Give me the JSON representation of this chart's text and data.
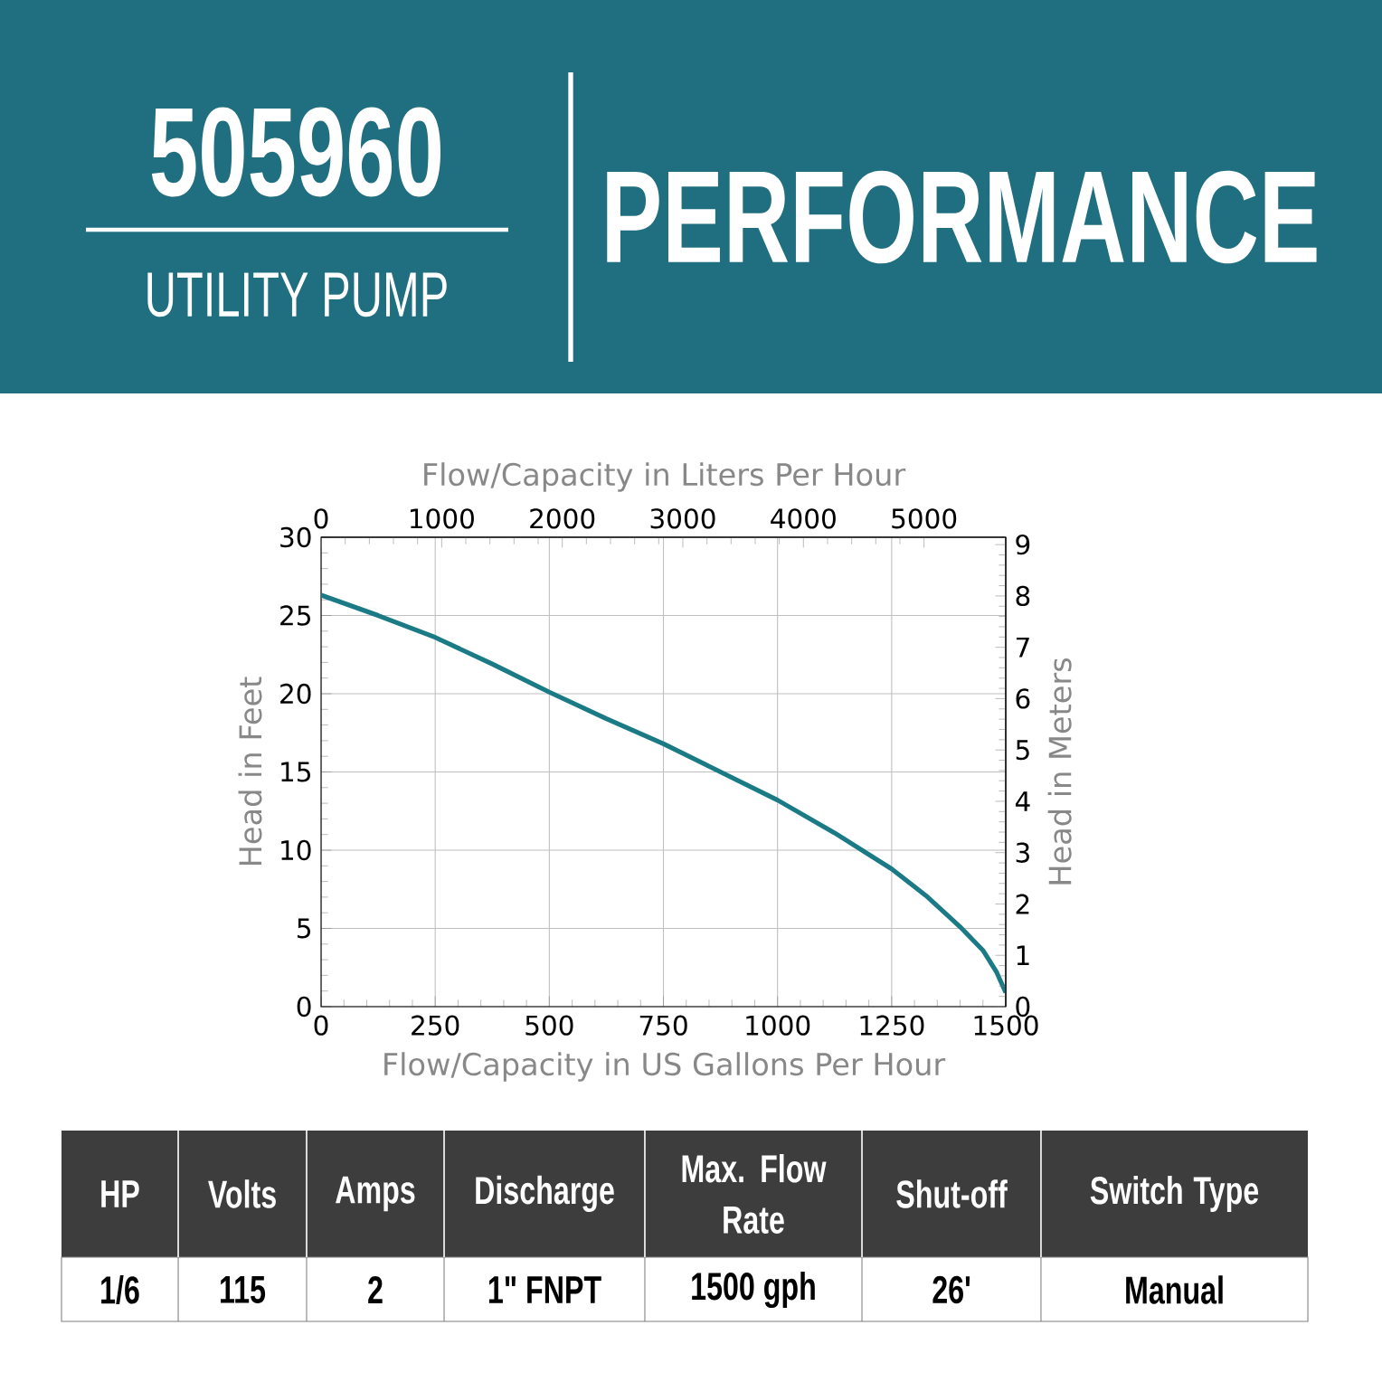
{
  "chart_data": {
    "type": "line",
    "title": "PERFORMANCE",
    "subtitle": "505960",
    "xlabel": "Flow/Capacity in US Gallons Per Hour",
    "ylabel": "Head in Feet",
    "x2label": "Flow/Capacity in Liters Per Hour",
    "y2label": "Head in Meters",
    "x": [
      0,
      125,
      250,
      375,
      500,
      625,
      750,
      875,
      1000,
      1125,
      1250,
      1325,
      1400,
      1450,
      1480,
      1500
    ],
    "series": [
      {
        "color": "#1a7a86",
        "values": [
          26.3,
          25.0,
          23.6,
          21.9,
          20.1,
          18.4,
          16.8,
          15.0,
          13.2,
          11.1,
          8.8,
          7.1,
          5.1,
          3.6,
          2.2,
          0.9
        ]
      }
    ],
    "xlim": [
      0,
      1500
    ],
    "xticks": [
      0,
      250,
      500,
      750,
      1000,
      1250,
      1500
    ],
    "ylim": [
      0,
      30
    ],
    "yticks": [
      0,
      5,
      10,
      15,
      20,
      25,
      30
    ],
    "x2lim": [
      0,
      5678
    ],
    "x2ticks": [
      0,
      1000,
      2000,
      3000,
      4000,
      5000
    ],
    "y2lim": [
      0,
      9.144
    ],
    "y2ticks": [
      0,
      1,
      2,
      3,
      4,
      5,
      6,
      7,
      8,
      9
    ],
    "grid": true,
    "annotations": [
      "UTILITY PUMP",
      "HP",
      "Volts",
      "Amps",
      "Discharge",
      "Max. Flow Rate",
      "Shut-off",
      "Switch Type",
      "1/6",
      "115",
      "2",
      "1\" FNPT",
      "1500 gph",
      "26'",
      "Manual"
    ]
  }
}
